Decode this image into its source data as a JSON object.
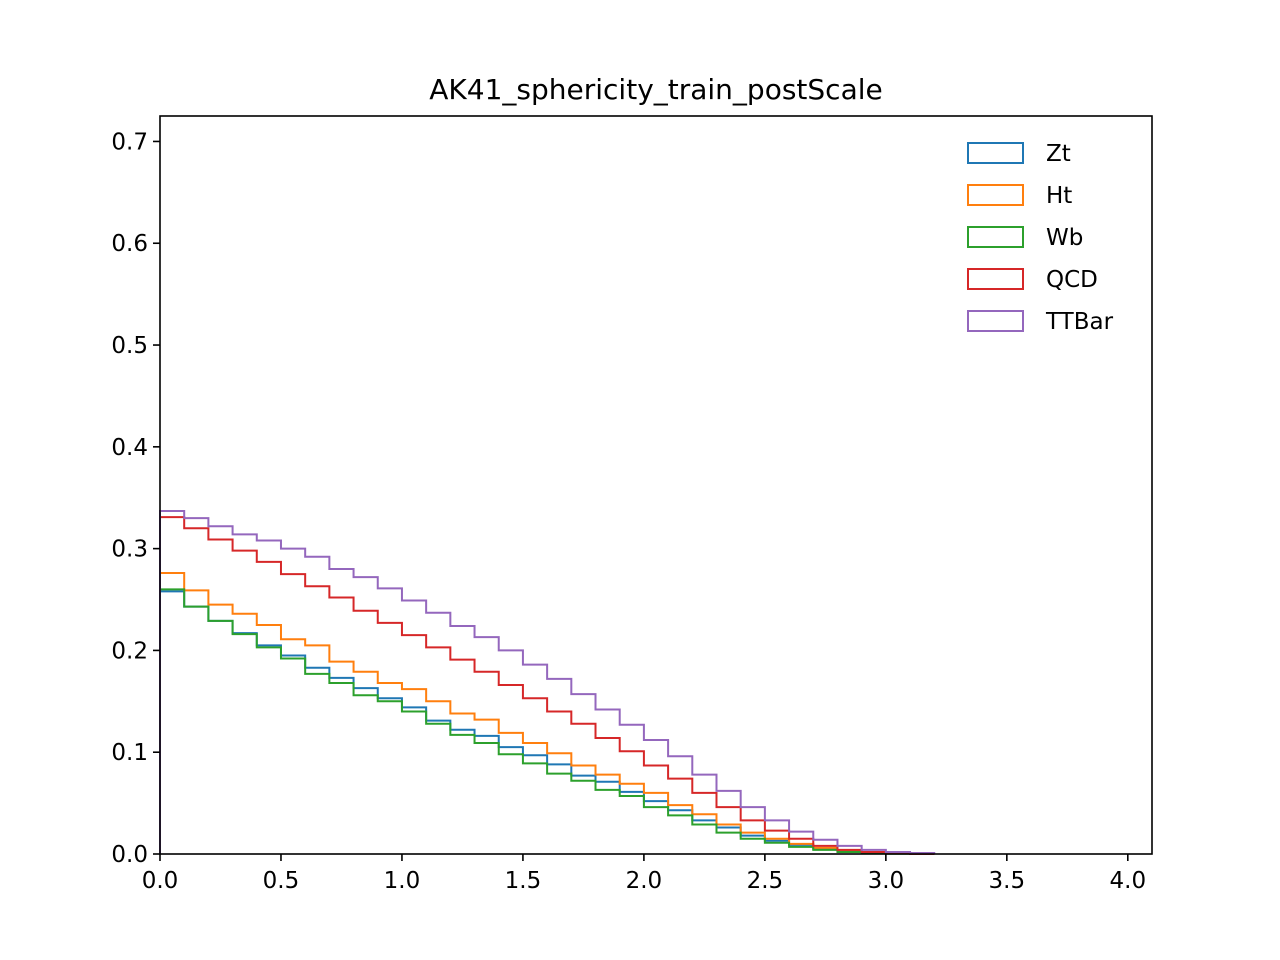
{
  "chart_data": {
    "type": "line",
    "subtype": "step-histogram",
    "title": "AK41_sphericity_train_postScale",
    "xlabel": "",
    "ylabel": "",
    "xlim": [
      0.0,
      4.1
    ],
    "ylim": [
      0.0,
      0.725
    ],
    "xticks": [
      "0.0",
      "0.5",
      "1.0",
      "1.5",
      "2.0",
      "2.5",
      "3.0",
      "3.5",
      "4.0"
    ],
    "yticks": [
      "0.0",
      "0.1",
      "0.2",
      "0.3",
      "0.4",
      "0.5",
      "0.6",
      "0.7"
    ],
    "grid": false,
    "legend_position": "top-right",
    "bin_edges": [
      0.0,
      0.1,
      0.2,
      0.3,
      0.4,
      0.5,
      0.6,
      0.7,
      0.8,
      0.9,
      1.0,
      1.1,
      1.2,
      1.3,
      1.4,
      1.5,
      1.6,
      1.7,
      1.8,
      1.9,
      2.0,
      2.1,
      2.2,
      2.3,
      2.4,
      2.5,
      2.6,
      2.7,
      2.8,
      2.9,
      3.0,
      3.1,
      3.2
    ],
    "series": [
      {
        "name": "Zt",
        "color": "#1f77b4",
        "values": [
          0.258,
          0.243,
          0.229,
          0.217,
          0.205,
          0.195,
          0.183,
          0.173,
          0.163,
          0.153,
          0.144,
          0.131,
          0.122,
          0.116,
          0.105,
          0.097,
          0.088,
          0.077,
          0.071,
          0.061,
          0.052,
          0.043,
          0.033,
          0.026,
          0.018,
          0.013,
          0.009,
          0.005,
          0.003,
          0.001,
          0.0005,
          0.0
        ]
      },
      {
        "name": "Ht",
        "color": "#ff7f0e",
        "values": [
          0.276,
          0.259,
          0.245,
          0.236,
          0.225,
          0.211,
          0.205,
          0.189,
          0.179,
          0.168,
          0.162,
          0.15,
          0.138,
          0.132,
          0.119,
          0.109,
          0.099,
          0.087,
          0.078,
          0.069,
          0.06,
          0.048,
          0.039,
          0.029,
          0.021,
          0.015,
          0.01,
          0.006,
          0.003,
          0.001,
          0.0005,
          0.0
        ]
      },
      {
        "name": "Wb",
        "color": "#2ca02c",
        "values": [
          0.26,
          0.243,
          0.229,
          0.216,
          0.203,
          0.192,
          0.177,
          0.168,
          0.156,
          0.15,
          0.14,
          0.128,
          0.117,
          0.109,
          0.098,
          0.089,
          0.079,
          0.072,
          0.063,
          0.057,
          0.046,
          0.038,
          0.029,
          0.021,
          0.015,
          0.011,
          0.007,
          0.004,
          0.002,
          0.001,
          0.0003,
          0.0
        ]
      },
      {
        "name": "QCD",
        "color": "#d62728",
        "values": [
          0.331,
          0.32,
          0.309,
          0.298,
          0.287,
          0.275,
          0.263,
          0.252,
          0.239,
          0.227,
          0.215,
          0.203,
          0.191,
          0.179,
          0.166,
          0.153,
          0.14,
          0.128,
          0.114,
          0.101,
          0.087,
          0.074,
          0.06,
          0.046,
          0.033,
          0.023,
          0.015,
          0.008,
          0.004,
          0.002,
          0.0005,
          0.0
        ]
      },
      {
        "name": "TTBar",
        "color": "#9467bd",
        "values": [
          0.337,
          0.33,
          0.322,
          0.314,
          0.308,
          0.3,
          0.292,
          0.28,
          0.272,
          0.261,
          0.249,
          0.237,
          0.224,
          0.213,
          0.2,
          0.186,
          0.172,
          0.157,
          0.142,
          0.127,
          0.112,
          0.096,
          0.078,
          0.062,
          0.046,
          0.033,
          0.022,
          0.014,
          0.008,
          0.004,
          0.002,
          0.001
        ]
      }
    ]
  }
}
